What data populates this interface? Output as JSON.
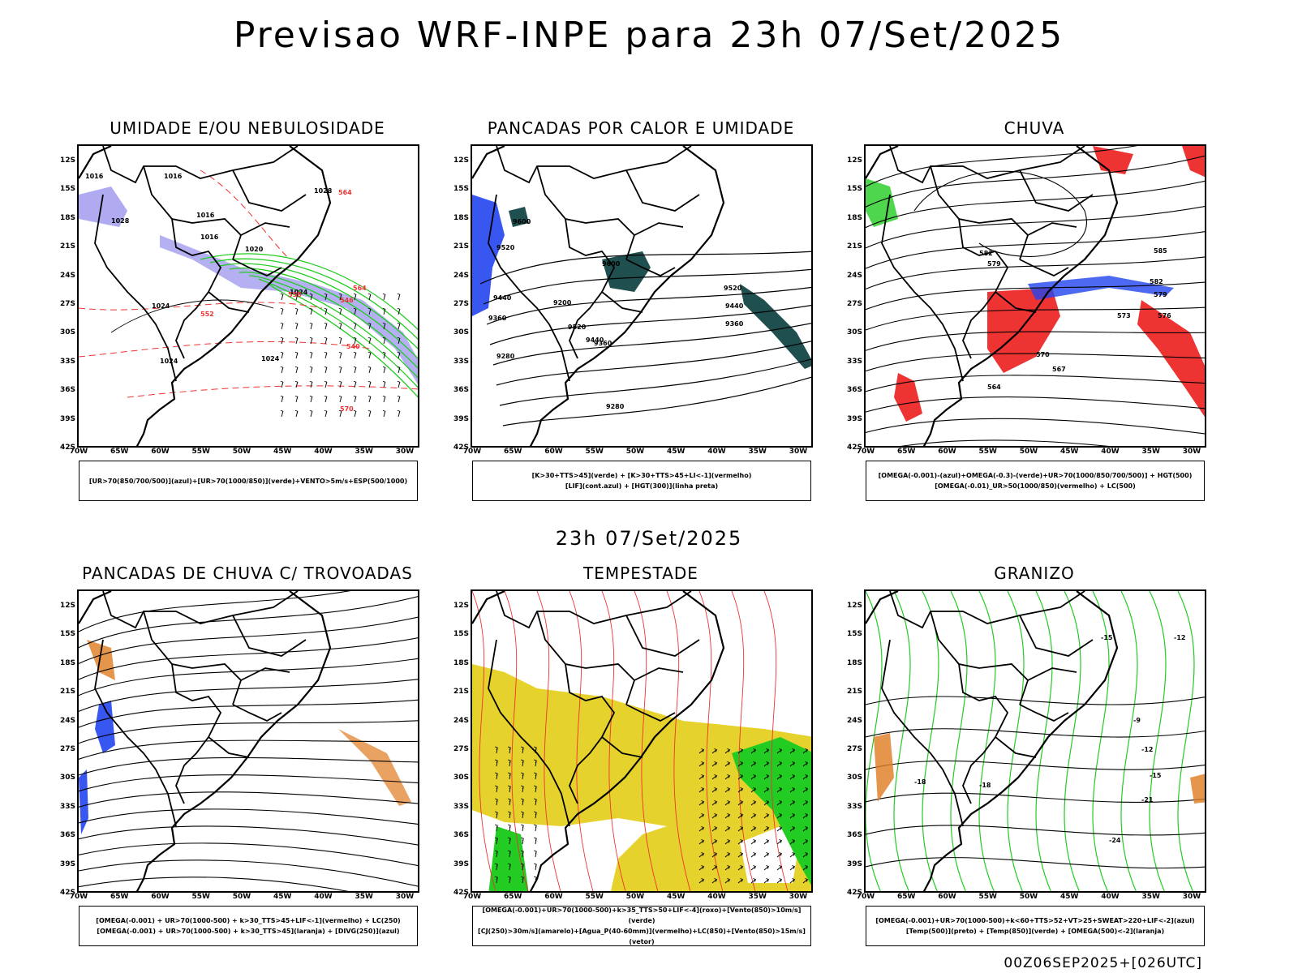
{
  "header": {
    "title": "Previsao WRF-INPE  para 23h 07/Set/2025"
  },
  "mid_title": "23h 07/Set/2025",
  "footer": "00Z06SEP2025+[026UTC]",
  "colors": {
    "purple": "#a7a2ee",
    "green": "#22cc22",
    "red": "#ee3333",
    "blue": "#2244ee",
    "teal": "#1f4f4f",
    "yellow": "#e6d22c",
    "orange": "#e07b20",
    "black": "#000000"
  },
  "axes": {
    "lat_labels": [
      "12S",
      "15S",
      "18S",
      "21S",
      "24S",
      "27S",
      "30S",
      "33S",
      "36S",
      "39S",
      "42S"
    ],
    "lon_labels": [
      "70W",
      "65W",
      "60W",
      "55W",
      "50W",
      "45W",
      "40W",
      "35W",
      "30W"
    ]
  },
  "panels": [
    {
      "title": "UMIDADE E/OU NEBULOSIDADE",
      "legend": [
        "[UR>70(850/700/500)](azul)+[UR>70(1000/850)](verde)+VENTO>5m/s+ESP(500/1000)"
      ],
      "contour_labels": [
        "1016",
        "1016",
        "1016",
        "1016",
        "1020",
        "1024",
        "1024",
        "1024",
        "1024",
        "1028",
        "1028",
        "564",
        "558",
        "552",
        "546",
        "540",
        "570",
        "564"
      ]
    },
    {
      "title": "PANCADAS POR CALOR E UMIDADE",
      "legend": [
        "[K>30+TTS>45](verde) + [K>30+TTS>45+LI<-1](vermelho)",
        "[LIF](cont.azul) + [HGT(300)](linha preta)"
      ],
      "contour_labels": [
        "9600",
        "9520",
        "9440",
        "9360",
        "9280",
        "9200",
        "9600",
        "9520",
        "9440",
        "9360",
        "9280",
        "9520",
        "9440",
        "9360"
      ]
    },
    {
      "title": "CHUVA",
      "legend": [
        "[OMEGA(-0.001)-(azul)+OMEGA(-0.3)-(verde)+UR>70(1000/850/700/500)] + HGT(500)",
        "[OMEGA(-0.01)_UR>50(1000/850)(vermelho) + LC(500)"
      ],
      "contour_labels": [
        "585",
        "582",
        "579",
        "576",
        "573",
        "570",
        "567",
        "564",
        "582",
        "579"
      ]
    },
    {
      "title": "PANCADAS DE CHUVA C/ TROVOADAS",
      "legend": [
        "[OMEGA(-0.001) + UR>70(1000-500) + k>30_TTS>45+LIF<-1](vermelho) + LC(250)",
        "[OMEGA(-0.001) + UR>70(1000-500) + k>30_TTS>45](laranja) + [DIVG(250)](azul)"
      ],
      "contour_labels": []
    },
    {
      "title": "TEMPESTADE",
      "legend": [
        "[OMEGA(-0.001)+UR>70(1000-500)+k>35_TTS>50+LIF<-4](roxo)+[Vento(850)>10m/s](verde)",
        "[CJ(250)>30m/s](amarelo)+[Agua_P(40-60mm)](vermelho)+LC(850)+[Vento(850)>15m/s](vetor)"
      ],
      "contour_labels": []
    },
    {
      "title": "GRANIZO",
      "legend": [
        "[OMEGA(-0.001)+UR>70(1000-500)+k<60+TTS>52+VT>25+SWEAT>220+LIF<-2](azul)",
        "[Temp(500)](preto) + [Temp(850)](verde) + [OMEGA(500)<-2](laranja)"
      ],
      "contour_labels": [
        "-9",
        "-12",
        "-15",
        "-18",
        "-18",
        "-21",
        "-24",
        "-15",
        "-12"
      ]
    }
  ]
}
